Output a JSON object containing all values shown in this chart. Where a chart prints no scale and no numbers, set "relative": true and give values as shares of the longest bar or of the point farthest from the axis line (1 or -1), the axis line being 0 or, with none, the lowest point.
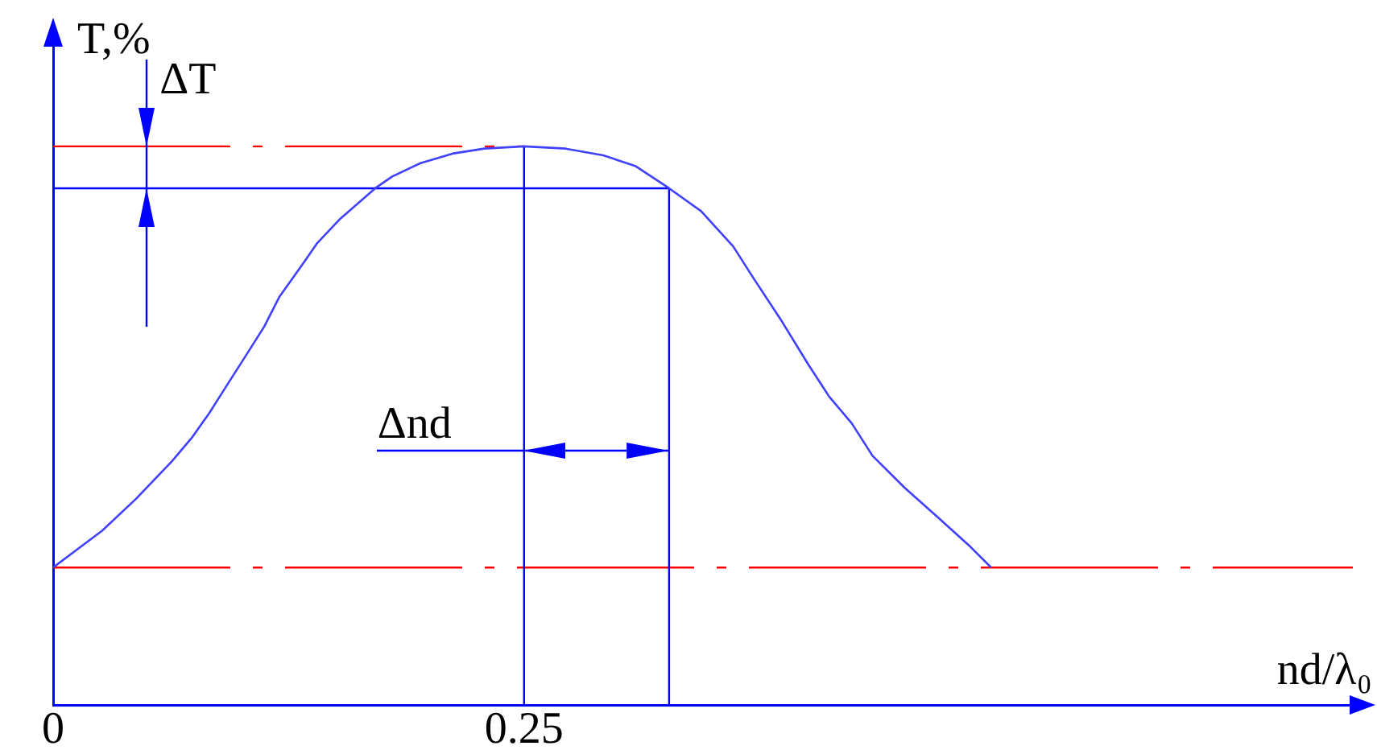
{
  "chart_data": {
    "type": "line",
    "xlabel": "nd/λ₀",
    "ylabel": "T,%",
    "relative": true,
    "x": [
      0,
      0.026,
      0.044,
      0.063,
      0.074,
      0.083,
      0.092,
      0.103,
      0.112,
      0.12,
      0.132,
      0.14,
      0.152,
      0.171,
      0.18,
      0.195,
      0.212,
      0.229,
      0.25,
      0.272,
      0.292,
      0.309,
      0.327,
      0.344,
      0.361,
      0.372,
      0.387,
      0.401,
      0.412,
      0.424,
      0.435,
      0.452,
      0.47,
      0.487,
      0.498
    ],
    "values": [
      0.246,
      0.312,
      0.369,
      0.436,
      0.48,
      0.523,
      0.571,
      0.629,
      0.677,
      0.73,
      0.787,
      0.826,
      0.869,
      0.925,
      0.946,
      0.97,
      0.987,
      0.996,
      1,
      0.996,
      0.984,
      0.965,
      0.925,
      0.884,
      0.821,
      0.763,
      0.686,
      0.609,
      0.552,
      0.504,
      0.446,
      0.389,
      0.335,
      0.283,
      0.246
    ],
    "color": "#4040ff",
    "marker": "none",
    "line_style": "solid",
    "xlim": [
      0,
      0.69
    ],
    "xticks": [
      0,
      0.25
    ],
    "ref_lines": [
      {
        "axis": "y",
        "value": 1,
        "color": "#ff0000",
        "line_style": "dashed"
      },
      {
        "axis": "y",
        "value": 0.925,
        "color": "#0000ff",
        "line_style": "solid"
      },
      {
        "axis": "y",
        "value": 0.246,
        "color": "#ff0000",
        "line_style": "dashed"
      },
      {
        "axis": "x",
        "value": 0.25,
        "color": "#0000ff",
        "line_style": "solid"
      },
      {
        "axis": "x",
        "value": 0.327,
        "color": "#0000ff",
        "line_style": "solid"
      }
    ],
    "annotations": [
      "ΔT",
      "Δnd"
    ],
    "grid": false,
    "legend": false,
    "tick_labels": "x"
  }
}
